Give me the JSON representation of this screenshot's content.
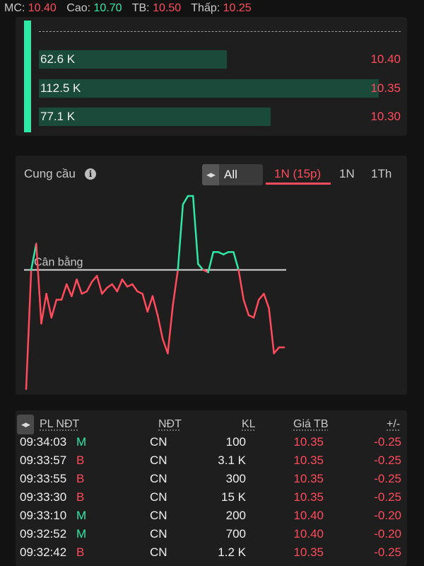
{
  "topbar": {
    "mc_label": "MC:",
    "mc_value": "10.40",
    "cao_label": "Cao:",
    "cao_value": "10.70",
    "tb_label": "TB:",
    "tb_value": "10.50",
    "thap_label": "Thấp:",
    "thap_value": "10.25"
  },
  "depth": {
    "rows": [
      {
        "volume": "62.6 K",
        "price": "10.40",
        "fill": 0.52
      },
      {
        "volume": "112.5 K",
        "price": "10.35",
        "fill": 0.94
      },
      {
        "volume": "77.1 K",
        "price": "10.30",
        "fill": 0.64
      }
    ]
  },
  "chart_panel": {
    "title": "Cung cầu",
    "segment_label": "All",
    "tabs": [
      {
        "label": "1N (15p)",
        "active": true
      },
      {
        "label": "1N",
        "active": false
      },
      {
        "label": "1Th",
        "active": false
      }
    ]
  },
  "chart_data": {
    "type": "line",
    "baseline_label": "Cân bằng",
    "baseline": 0,
    "above_color": "#2ee8a5",
    "below_color": "#ff4b5c",
    "values": [
      -100,
      0,
      22,
      -45,
      -20,
      -40,
      -25,
      -25,
      -12,
      -22,
      -8,
      -20,
      -18,
      -10,
      -5,
      -20,
      -15,
      -12,
      -18,
      -8,
      -14,
      -12,
      -18,
      -20,
      -35,
      -22,
      -38,
      -58,
      -70,
      -30,
      0,
      55,
      62,
      62,
      5,
      0,
      -2,
      15,
      15,
      13,
      15,
      15,
      0,
      -25,
      -38,
      -40,
      -25,
      -20,
      -32,
      -70,
      -65,
      -65
    ],
    "ylim": [
      -100,
      65
    ]
  },
  "trades": {
    "headers": {
      "pl_ndt": "PL NĐT",
      "ndt": "NĐT",
      "kl": "KL",
      "gia_tb": "Giá TB",
      "change": "+/-"
    },
    "rows": [
      {
        "time": "09:34:03",
        "side": "M",
        "ndt": "CN",
        "kl": "100",
        "gia": "10.35",
        "change": "-0.25"
      },
      {
        "time": "09:33:57",
        "side": "B",
        "ndt": "CN",
        "kl": "3.1 K",
        "gia": "10.35",
        "change": "-0.25"
      },
      {
        "time": "09:33:55",
        "side": "B",
        "ndt": "CN",
        "kl": "300",
        "gia": "10.35",
        "change": "-0.25"
      },
      {
        "time": "09:33:30",
        "side": "B",
        "ndt": "CN",
        "kl": "15 K",
        "gia": "10.35",
        "change": "-0.25"
      },
      {
        "time": "09:33:10",
        "side": "M",
        "ndt": "CN",
        "kl": "200",
        "gia": "10.40",
        "change": "-0.20"
      },
      {
        "time": "09:32:52",
        "side": "M",
        "ndt": "CN",
        "kl": "700",
        "gia": "10.40",
        "change": "-0.20"
      },
      {
        "time": "09:32:42",
        "side": "B",
        "ndt": "CN",
        "kl": "1.2 K",
        "gia": "10.35",
        "change": "-0.25"
      }
    ]
  }
}
